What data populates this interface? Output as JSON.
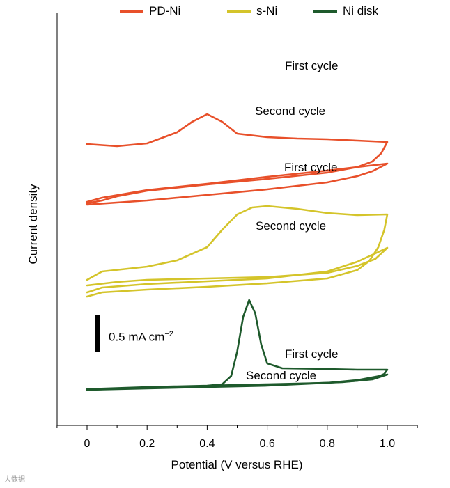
{
  "chart_data": {
    "type": "line",
    "xlabel": "Potential (V versus RHE)",
    "ylabel": "Current density",
    "xlim": [
      -0.1,
      1.1
    ],
    "x_ticks": [
      "0",
      "0.2",
      "0.4",
      "0.6",
      "0.8",
      "1.0"
    ],
    "scale_bar": {
      "value": 0.5,
      "label_main": "0.5 mA cm",
      "label_exp": "−2"
    },
    "legend": [
      {
        "name": "PD-Ni",
        "color": "#e8502a"
      },
      {
        "name": "s-Ni",
        "color": "#d4c42a"
      },
      {
        "name": "Ni disk",
        "color": "#1e5a2c"
      }
    ],
    "annotations": [
      {
        "series": "PD-Ni",
        "text": "First cycle"
      },
      {
        "series": "PD-Ni",
        "text": "Second cycle"
      },
      {
        "series": "s-Ni",
        "text": "First cycle"
      },
      {
        "series": "s-Ni",
        "text": "Second cycle"
      },
      {
        "series": "Ni disk",
        "text": "First cycle"
      },
      {
        "series": "Ni disk",
        "text": "Second cycle"
      }
    ],
    "series": [
      {
        "name": "PD-Ni",
        "color": "#e8502a",
        "note": "relative current density in scale-bar units (mA cm-2), vertical offset applied",
        "first_cycle": {
          "anodic": [
            [
              0,
              3.53
            ],
            [
              0.1,
              3.5
            ],
            [
              0.2,
              3.54
            ],
            [
              0.3,
              3.7
            ],
            [
              0.35,
              3.85
            ],
            [
              0.4,
              3.96
            ],
            [
              0.45,
              3.85
            ],
            [
              0.5,
              3.68
            ],
            [
              0.6,
              3.63
            ],
            [
              0.7,
              3.61
            ],
            [
              0.8,
              3.6
            ],
            [
              0.9,
              3.58
            ],
            [
              1.0,
              3.56
            ]
          ],
          "cathodic": [
            [
              1.0,
              3.56
            ],
            [
              0.98,
              3.4
            ],
            [
              0.95,
              3.28
            ],
            [
              0.9,
              3.2
            ],
            [
              0.8,
              3.12
            ],
            [
              0.6,
              3.03
            ],
            [
              0.4,
              2.95
            ],
            [
              0.2,
              2.86
            ],
            [
              0.1,
              2.78
            ],
            [
              0.05,
              2.72
            ],
            [
              0,
              2.68
            ]
          ]
        },
        "second_cycle": {
          "anodic": [
            [
              0,
              2.66
            ],
            [
              0.2,
              2.72
            ],
            [
              0.4,
              2.8
            ],
            [
              0.6,
              2.88
            ],
            [
              0.8,
              2.98
            ],
            [
              0.9,
              3.07
            ],
            [
              0.95,
              3.14
            ],
            [
              1.0,
              3.25
            ]
          ],
          "cathodic": [
            [
              1.0,
              3.25
            ],
            [
              0.9,
              3.2
            ],
            [
              0.8,
              3.15
            ],
            [
              0.6,
              3.06
            ],
            [
              0.4,
              2.96
            ],
            [
              0.2,
              2.87
            ],
            [
              0.05,
              2.76
            ],
            [
              0,
              2.7
            ]
          ]
        }
      },
      {
        "name": "s-Ni",
        "color": "#d4c42a",
        "note": "relative current density in scale-bar units (mA cm-2), vertical offset applied",
        "first_cycle": {
          "anodic": [
            [
              0,
              1.58
            ],
            [
              0.05,
              1.7
            ],
            [
              0.2,
              1.77
            ],
            [
              0.3,
              1.86
            ],
            [
              0.4,
              2.05
            ],
            [
              0.45,
              2.3
            ],
            [
              0.5,
              2.52
            ],
            [
              0.55,
              2.62
            ],
            [
              0.6,
              2.64
            ],
            [
              0.7,
              2.6
            ],
            [
              0.8,
              2.54
            ],
            [
              0.9,
              2.51
            ],
            [
              1.0,
              2.52
            ]
          ],
          "cathodic": [
            [
              1.0,
              2.52
            ],
            [
              0.99,
              2.3
            ],
            [
              0.97,
              2.05
            ],
            [
              0.94,
              1.85
            ],
            [
              0.9,
              1.72
            ],
            [
              0.8,
              1.6
            ],
            [
              0.6,
              1.53
            ],
            [
              0.4,
              1.48
            ],
            [
              0.2,
              1.44
            ],
            [
              0.05,
              1.4
            ],
            [
              0,
              1.34
            ]
          ]
        },
        "second_cycle": {
          "anodic": [
            [
              0,
              1.4
            ],
            [
              0.05,
              1.47
            ],
            [
              0.2,
              1.52
            ],
            [
              0.4,
              1.56
            ],
            [
              0.6,
              1.6
            ],
            [
              0.8,
              1.7
            ],
            [
              0.9,
              1.84
            ],
            [
              1.0,
              2.04
            ]
          ],
          "cathodic": [
            [
              1.0,
              2.04
            ],
            [
              0.96,
              1.88
            ],
            [
              0.9,
              1.78
            ],
            [
              0.8,
              1.68
            ],
            [
              0.6,
              1.62
            ],
            [
              0.4,
              1.6
            ],
            [
              0.2,
              1.58
            ],
            [
              0.1,
              1.55
            ],
            [
              0,
              1.5
            ]
          ]
        }
      },
      {
        "name": "Ni disk",
        "color": "#1e5a2c",
        "note": "relative current density in scale-bar units (mA cm-2)",
        "first_cycle": {
          "anodic": [
            [
              0,
              0.0
            ],
            [
              0.2,
              0.03
            ],
            [
              0.4,
              0.06
            ],
            [
              0.45,
              0.08
            ],
            [
              0.48,
              0.2
            ],
            [
              0.5,
              0.55
            ],
            [
              0.52,
              1.05
            ],
            [
              0.54,
              1.29
            ],
            [
              0.56,
              1.1
            ],
            [
              0.58,
              0.65
            ],
            [
              0.6,
              0.38
            ],
            [
              0.65,
              0.31
            ],
            [
              0.8,
              0.3
            ],
            [
              0.9,
              0.29
            ],
            [
              1.0,
              0.29
            ]
          ],
          "cathodic": [
            [
              1.0,
              0.29
            ],
            [
              0.99,
              0.23
            ],
            [
              0.96,
              0.17
            ],
            [
              0.9,
              0.13
            ],
            [
              0.8,
              0.1
            ],
            [
              0.6,
              0.08
            ],
            [
              0.4,
              0.06
            ],
            [
              0.2,
              0.04
            ],
            [
              0,
              0.01
            ]
          ]
        },
        "second_cycle": {
          "anodic": [
            [
              0,
              0.0
            ],
            [
              0.2,
              0.02
            ],
            [
              0.4,
              0.04
            ],
            [
              0.6,
              0.06
            ],
            [
              0.8,
              0.1
            ],
            [
              0.9,
              0.14
            ],
            [
              1.0,
              0.22
            ]
          ],
          "cathodic": [
            [
              1.0,
              0.22
            ],
            [
              0.95,
              0.15
            ],
            [
              0.85,
              0.11
            ],
            [
              0.6,
              0.07
            ],
            [
              0.4,
              0.05
            ],
            [
              0.2,
              0.03
            ],
            [
              0,
              0.0
            ]
          ]
        }
      }
    ]
  },
  "watermark": "大数据"
}
